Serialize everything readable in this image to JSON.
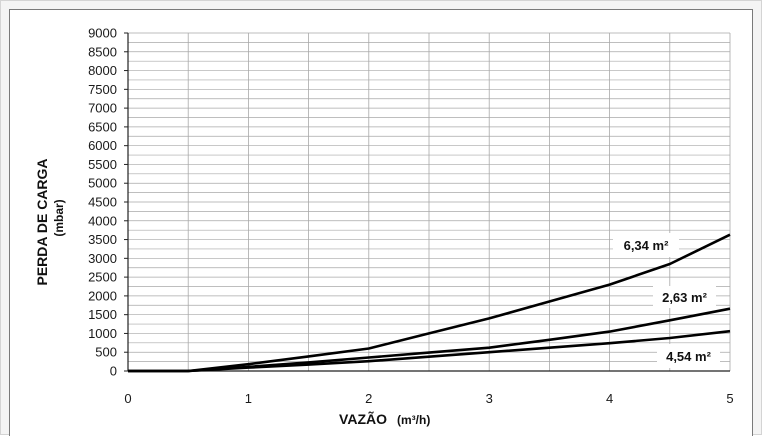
{
  "chart_data": {
    "type": "line",
    "title": "",
    "xlabel": "VAZÃO",
    "xlabel_unit": "(m³/h)",
    "ylabel": "PERDA DE CARGA",
    "ylabel_unit": "(mbar)",
    "xlim": [
      0,
      5
    ],
    "ylim": [
      0,
      9000
    ],
    "x_ticks": [
      "0",
      "1",
      "2",
      "3",
      "4",
      "5"
    ],
    "y_ticks": [
      "0",
      "500",
      "1000",
      "1500",
      "2000",
      "2500",
      "3000",
      "3500",
      "4000",
      "4500",
      "5000",
      "5500",
      "6000",
      "6500",
      "7000",
      "7500",
      "8000",
      "8500",
      "9000"
    ],
    "grid": true,
    "line_color": "#000000",
    "series": [
      {
        "name": "6,34 m²",
        "x": [
          0,
          0.5,
          1,
          1.5,
          2,
          2.5,
          3,
          3.5,
          4,
          4.5,
          5
        ],
        "values": [
          0,
          0,
          180,
          390,
          600,
          1000,
          1400,
          1850,
          2300,
          2850,
          3630
        ]
      },
      {
        "name": "2,63 m²",
        "x": [
          0,
          0.5,
          1,
          1.5,
          2,
          2.5,
          3,
          3.5,
          4,
          4.5,
          5
        ],
        "values": [
          0,
          0,
          110,
          230,
          360,
          490,
          620,
          830,
          1050,
          1350,
          1660
        ]
      },
      {
        "name": "4,54 m²",
        "x": [
          0,
          0.5,
          1,
          1.5,
          2,
          2.5,
          3,
          3.5,
          4,
          4.5,
          5
        ],
        "values": [
          0,
          0,
          90,
          170,
          260,
          380,
          500,
          620,
          740,
          880,
          1060
        ]
      }
    ]
  }
}
